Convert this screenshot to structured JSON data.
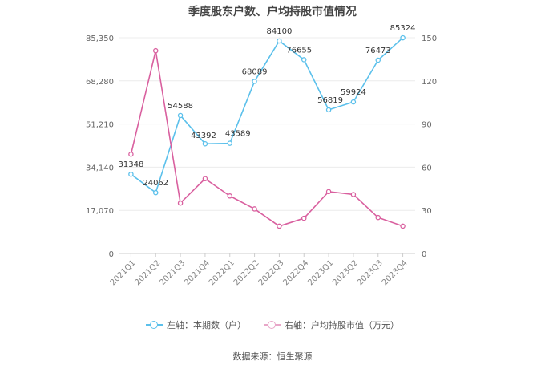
{
  "chart_data": {
    "type": "line",
    "title": "季度股东户数、户均持股市值情况",
    "categories": [
      "2021Q1",
      "2021Q2",
      "2021Q3",
      "2021Q4",
      "2022Q1",
      "2022Q2",
      "2022Q3",
      "2022Q4",
      "2023Q1",
      "2023Q2",
      "2023Q3",
      "2023Q4"
    ],
    "y_left": {
      "ticks": [
        "0",
        "17,070",
        "34,140",
        "51,210",
        "68,280",
        "85,350"
      ],
      "range": [
        0,
        85350
      ]
    },
    "y_right": {
      "ticks": [
        "0",
        "30",
        "60",
        "90",
        "120",
        "150"
      ],
      "range": [
        0,
        150
      ]
    },
    "grid": true,
    "legend_position": "bottom",
    "series": [
      {
        "name": "左轴：本期数（户）",
        "axis": "left",
        "color": "#5bc0eb",
        "values": [
          31348,
          24062,
          54588,
          43392,
          43589,
          68089,
          84100,
          76655,
          56819,
          59924,
          76473,
          85324
        ],
        "labels": [
          "31348",
          "24062",
          "54588",
          "43392",
          "43589",
          "68089",
          "84100",
          "76655",
          "56819",
          "59924",
          "76473",
          "85324"
        ]
      },
      {
        "name": "右轴：户均持股市值（万元）",
        "axis": "right",
        "color": "#d9609f",
        "values": [
          69,
          141,
          35,
          52,
          40,
          31,
          19,
          24.5,
          43,
          41,
          25,
          19
        ]
      }
    ]
  },
  "source": "数据来源：恒生聚源"
}
